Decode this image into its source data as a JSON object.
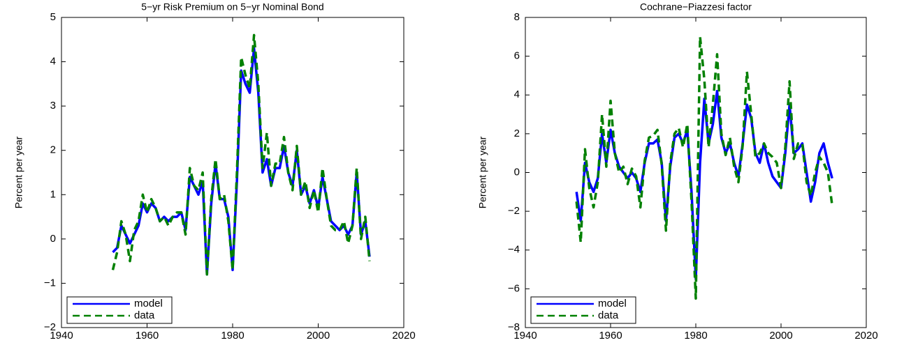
{
  "chart_data": [
    {
      "type": "line",
      "title": "5−yr Risk Premium on 5−yr Nominal Bond",
      "ylabel": "Percent per year",
      "x": [
        1952,
        1953,
        1954,
        1955,
        1956,
        1957,
        1958,
        1959,
        1960,
        1961,
        1962,
        1963,
        1964,
        1965,
        1966,
        1967,
        1968,
        1969,
        1970,
        1971,
        1972,
        1973,
        1974,
        1975,
        1976,
        1977,
        1978,
        1979,
        1980,
        1981,
        1982,
        1983,
        1984,
        1985,
        1986,
        1987,
        1988,
        1989,
        1990,
        1991,
        1992,
        1993,
        1994,
        1995,
        1996,
        1997,
        1998,
        1999,
        2000,
        2001,
        2002,
        2003,
        2004,
        2005,
        2006,
        2007,
        2008,
        2009,
        2010,
        2011,
        2012
      ],
      "series": [
        {
          "name": "model",
          "color": "#0000ff",
          "dash": "solid",
          "values": [
            -0.3,
            -0.2,
            0.3,
            0.1,
            -0.1,
            0.1,
            0.3,
            0.8,
            0.6,
            0.8,
            0.7,
            0.4,
            0.5,
            0.4,
            0.5,
            0.5,
            0.6,
            0.2,
            1.4,
            1.2,
            1.0,
            1.3,
            -0.8,
            0.8,
            1.7,
            0.9,
            0.9,
            0.5,
            -0.7,
            1.3,
            3.8,
            3.5,
            3.3,
            4.3,
            3.3,
            1.5,
            1.8,
            1.2,
            1.6,
            1.6,
            2.1,
            1.5,
            1.2,
            2.0,
            1.0,
            1.2,
            0.8,
            1.1,
            0.7,
            1.4,
            0.9,
            0.4,
            0.3,
            0.2,
            0.3,
            0.1,
            0.3,
            1.5,
            0.1,
            0.4,
            -0.4
          ]
        },
        {
          "name": "data",
          "color": "#008000",
          "dash": "dashed",
          "values": [
            -0.7,
            -0.3,
            0.4,
            0.1,
            -0.5,
            0.2,
            0.4,
            1.0,
            0.6,
            0.9,
            0.7,
            0.4,
            0.5,
            0.3,
            0.5,
            0.6,
            0.6,
            0.1,
            1.6,
            1.2,
            1.1,
            1.5,
            -0.8,
            0.9,
            1.8,
            0.9,
            1.0,
            0.4,
            -0.7,
            1.5,
            4.1,
            3.7,
            3.4,
            4.6,
            3.5,
            1.6,
            2.4,
            1.2,
            1.7,
            1.7,
            2.3,
            1.5,
            1.1,
            2.1,
            1.0,
            1.3,
            0.7,
            1.1,
            0.6,
            1.6,
            0.9,
            0.3,
            0.2,
            0.2,
            0.4,
            -0.1,
            0.3,
            1.6,
            0.0,
            0.5,
            -0.5
          ]
        }
      ],
      "xlim": [
        1940,
        2020
      ],
      "xticks": [
        1940,
        1960,
        1980,
        2000,
        2020
      ],
      "ylim": [
        -2,
        5
      ],
      "yticks": [
        {
          "value": -2,
          "label": "−2"
        },
        {
          "value": -1,
          "label": "−1"
        },
        0,
        1,
        2,
        3,
        4,
        5
      ],
      "legend": "lower left"
    },
    {
      "type": "line",
      "title": "Cochrane−Piazzesi factor",
      "ylabel": "Percent per year",
      "x": [
        1952,
        1953,
        1954,
        1955,
        1956,
        1957,
        1958,
        1959,
        1960,
        1961,
        1962,
        1963,
        1964,
        1965,
        1966,
        1967,
        1968,
        1969,
        1970,
        1971,
        1972,
        1973,
        1974,
        1975,
        1976,
        1977,
        1978,
        1979,
        1980,
        1981,
        1982,
        1983,
        1984,
        1985,
        1986,
        1987,
        1988,
        1989,
        1990,
        1991,
        1992,
        1993,
        1994,
        1995,
        1996,
        1997,
        1998,
        1999,
        2000,
        2001,
        2002,
        2003,
        2004,
        2005,
        2006,
        2007,
        2008,
        2009,
        2010,
        2011,
        2012
      ],
      "series": [
        {
          "name": "model",
          "color": "#0000ff",
          "dash": "solid",
          "values": [
            -1.0,
            -2.5,
            0.5,
            -0.5,
            -1.0,
            -0.3,
            2.0,
            0.5,
            2.2,
            1.0,
            0.3,
            0.0,
            -0.3,
            0.0,
            -0.3,
            -1.0,
            0.5,
            1.5,
            1.5,
            1.7,
            0.5,
            -2.5,
            0.3,
            1.8,
            2.0,
            1.5,
            2.2,
            -1.0,
            -5.5,
            0.5,
            3.8,
            1.5,
            2.5,
            4.2,
            1.8,
            1.0,
            1.5,
            0.5,
            -0.2,
            1.5,
            3.5,
            2.8,
            1.0,
            0.5,
            1.5,
            0.5,
            -0.2,
            -0.5,
            -0.8,
            1.0,
            3.5,
            1.0,
            1.2,
            1.5,
            0.0,
            -1.5,
            -0.5,
            1.0,
            1.5,
            0.5,
            -0.3
          ]
        },
        {
          "name": "data",
          "color": "#008000",
          "dash": "dashed",
          "values": [
            -1.5,
            -3.6,
            1.2,
            -0.8,
            -1.8,
            -0.5,
            3.0,
            0.3,
            3.7,
            1.0,
            0.0,
            0.3,
            -0.6,
            0.2,
            -0.2,
            -1.8,
            0.6,
            1.8,
            1.9,
            2.2,
            0.4,
            -3.0,
            0.5,
            2.0,
            2.3,
            1.3,
            2.5,
            -1.5,
            -6.5,
            7.0,
            4.8,
            1.3,
            3.5,
            6.1,
            2.0,
            0.9,
            1.8,
            0.3,
            -0.5,
            1.4,
            5.2,
            3.0,
            0.8,
            1.0,
            1.5,
            1.0,
            0.8,
            0.5,
            -0.8,
            1.3,
            4.7,
            0.7,
            1.5,
            1.5,
            -0.5,
            -1.2,
            0.0,
            0.8,
            0.5,
            0.0,
            -1.7
          ]
        }
      ],
      "xlim": [
        1940,
        2020
      ],
      "xticks": [
        1940,
        1960,
        1980,
        2000,
        2020
      ],
      "ylim": [
        -8,
        8
      ],
      "yticks": [
        {
          "value": -8,
          "label": "−8"
        },
        {
          "value": -6,
          "label": "−6"
        },
        {
          "value": -4,
          "label": "−4"
        },
        {
          "value": -2,
          "label": "−2"
        },
        0,
        2,
        4,
        6,
        8
      ],
      "legend": "lower left"
    }
  ]
}
